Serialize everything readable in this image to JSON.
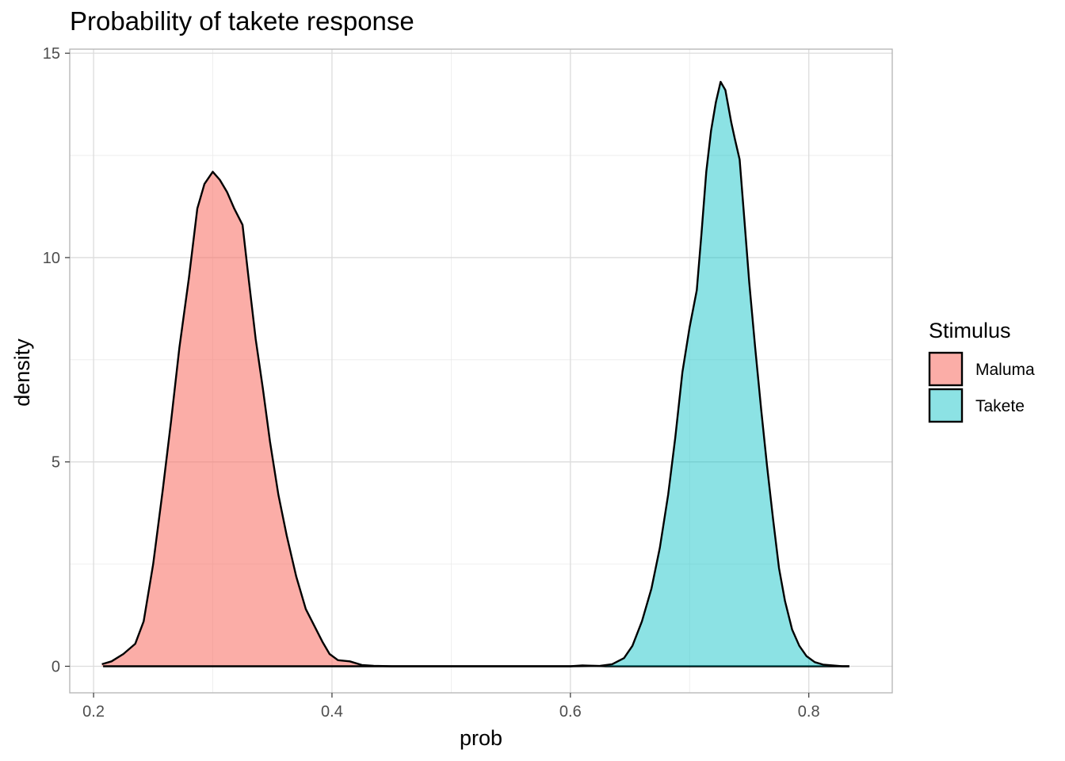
{
  "chart_data": {
    "type": "area",
    "title": "Probability of takete response",
    "xlabel": "prob",
    "ylabel": "density",
    "xlim": [
      0.18,
      0.87
    ],
    "ylim": [
      -0.65,
      15.1
    ],
    "x_ticks": [
      0.2,
      0.4,
      0.6,
      0.8
    ],
    "x_tick_labels": [
      "0.2",
      "0.4",
      "0.6",
      "0.8"
    ],
    "y_ticks": [
      0,
      5,
      10,
      15
    ],
    "y_tick_labels": [
      "0",
      "5",
      "10",
      "15"
    ],
    "grid": true,
    "legend": {
      "title": "Stimulus",
      "position": "right"
    },
    "series": [
      {
        "name": "Maluma",
        "fill": "#F8766D",
        "opacity": 0.6,
        "points": [
          [
            0.207,
            0.05
          ],
          [
            0.215,
            0.12
          ],
          [
            0.225,
            0.3
          ],
          [
            0.235,
            0.55
          ],
          [
            0.242,
            1.1
          ],
          [
            0.25,
            2.5
          ],
          [
            0.258,
            4.3
          ],
          [
            0.265,
            6.0
          ],
          [
            0.272,
            7.8
          ],
          [
            0.28,
            9.5
          ],
          [
            0.287,
            11.2
          ],
          [
            0.293,
            11.8
          ],
          [
            0.3,
            12.1
          ],
          [
            0.306,
            11.9
          ],
          [
            0.312,
            11.6
          ],
          [
            0.318,
            11.2
          ],
          [
            0.325,
            10.8
          ],
          [
            0.33,
            9.5
          ],
          [
            0.336,
            8.0
          ],
          [
            0.342,
            6.8
          ],
          [
            0.348,
            5.5
          ],
          [
            0.355,
            4.2
          ],
          [
            0.362,
            3.2
          ],
          [
            0.37,
            2.2
          ],
          [
            0.378,
            1.4
          ],
          [
            0.385,
            1.0
          ],
          [
            0.392,
            0.6
          ],
          [
            0.398,
            0.3
          ],
          [
            0.405,
            0.15
          ],
          [
            0.415,
            0.12
          ],
          [
            0.425,
            0.03
          ],
          [
            0.435,
            0.01
          ],
          [
            0.45,
            0.0
          ],
          [
            0.5,
            0.0
          ],
          [
            0.55,
            0.0
          ],
          [
            0.6,
            0.0
          ],
          [
            0.61,
            0.02
          ],
          [
            0.62,
            0.01
          ],
          [
            0.63,
            0.0
          ],
          [
            0.7,
            0.0
          ],
          [
            0.8,
            0.0
          ],
          [
            0.834,
            0.0
          ]
        ]
      },
      {
        "name": "Takete",
        "fill": "#00BFC4",
        "opacity": 0.45,
        "points": [
          [
            0.208,
            0.0
          ],
          [
            0.3,
            0.0
          ],
          [
            0.4,
            0.0
          ],
          [
            0.5,
            0.0
          ],
          [
            0.6,
            0.0
          ],
          [
            0.625,
            0.01
          ],
          [
            0.635,
            0.05
          ],
          [
            0.645,
            0.2
          ],
          [
            0.652,
            0.5
          ],
          [
            0.66,
            1.1
          ],
          [
            0.668,
            1.9
          ],
          [
            0.675,
            2.9
          ],
          [
            0.682,
            4.2
          ],
          [
            0.688,
            5.6
          ],
          [
            0.694,
            7.2
          ],
          [
            0.7,
            8.3
          ],
          [
            0.706,
            9.2
          ],
          [
            0.71,
            10.6
          ],
          [
            0.714,
            12.1
          ],
          [
            0.718,
            13.1
          ],
          [
            0.722,
            13.8
          ],
          [
            0.726,
            14.3
          ],
          [
            0.73,
            14.1
          ],
          [
            0.735,
            13.3
          ],
          [
            0.738,
            12.9
          ],
          [
            0.742,
            12.4
          ],
          [
            0.746,
            10.9
          ],
          [
            0.75,
            9.4
          ],
          [
            0.755,
            7.8
          ],
          [
            0.76,
            6.3
          ],
          [
            0.765,
            4.9
          ],
          [
            0.77,
            3.6
          ],
          [
            0.775,
            2.4
          ],
          [
            0.78,
            1.6
          ],
          [
            0.786,
            0.9
          ],
          [
            0.792,
            0.5
          ],
          [
            0.798,
            0.25
          ],
          [
            0.805,
            0.1
          ],
          [
            0.812,
            0.04
          ],
          [
            0.82,
            0.02
          ],
          [
            0.828,
            0.0
          ],
          [
            0.834,
            0.0
          ]
        ]
      }
    ]
  }
}
